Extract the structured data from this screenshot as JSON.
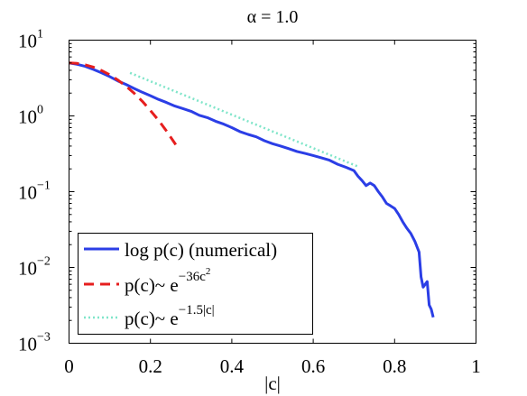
{
  "chart_data": {
    "type": "line",
    "title": "α = 1.0",
    "xlabel": "|c|",
    "ylabel": "",
    "xlim": [
      0,
      1
    ],
    "ylim": [
      0.001,
      10
    ],
    "yscale": "log",
    "grid": false,
    "legend_position": "bottom-left",
    "x_ticks": [
      {
        "value": 0,
        "label": "0"
      },
      {
        "value": 0.2,
        "label": "0.2"
      },
      {
        "value": 0.4,
        "label": "0.4"
      },
      {
        "value": 0.6,
        "label": "0.6"
      },
      {
        "value": 0.8,
        "label": "0.8"
      },
      {
        "value": 1,
        "label": "1"
      }
    ],
    "y_ticks": [
      {
        "value": 10,
        "base": "10",
        "exp": "1"
      },
      {
        "value": 1,
        "base": "10",
        "exp": "0"
      },
      {
        "value": 0.1,
        "base": "10",
        "exp": "−1"
      },
      {
        "value": 0.01,
        "base": "10",
        "exp": "−2"
      },
      {
        "value": 0.001,
        "base": "10",
        "exp": "−3"
      }
    ],
    "series": [
      {
        "name": "log p(c) (numerical)",
        "color": "#2b3ee6",
        "style": "solid",
        "x": [
          0.0,
          0.02,
          0.04,
          0.06,
          0.08,
          0.1,
          0.12,
          0.14,
          0.16,
          0.18,
          0.2,
          0.22,
          0.24,
          0.26,
          0.28,
          0.3,
          0.32,
          0.34,
          0.36,
          0.38,
          0.4,
          0.42,
          0.44,
          0.46,
          0.48,
          0.5,
          0.52,
          0.54,
          0.56,
          0.58,
          0.6,
          0.62,
          0.64,
          0.66,
          0.68,
          0.7,
          0.71,
          0.72,
          0.73,
          0.74,
          0.75,
          0.76,
          0.77,
          0.78,
          0.79,
          0.8,
          0.81,
          0.82,
          0.83,
          0.84,
          0.85,
          0.86,
          0.865,
          0.87,
          0.88,
          0.885,
          0.89,
          0.895
        ],
        "y": [
          5.0,
          4.8,
          4.5,
          4.1,
          3.7,
          3.3,
          2.9,
          2.6,
          2.3,
          2.05,
          1.85,
          1.65,
          1.5,
          1.35,
          1.25,
          1.15,
          1.02,
          0.95,
          0.85,
          0.78,
          0.7,
          0.62,
          0.57,
          0.53,
          0.47,
          0.43,
          0.4,
          0.37,
          0.34,
          0.32,
          0.3,
          0.28,
          0.26,
          0.23,
          0.21,
          0.19,
          0.16,
          0.14,
          0.12,
          0.13,
          0.12,
          0.1,
          0.085,
          0.07,
          0.065,
          0.06,
          0.05,
          0.04,
          0.033,
          0.028,
          0.022,
          0.016,
          0.0075,
          0.0055,
          0.0065,
          0.0032,
          0.0028,
          0.0022
        ]
      },
      {
        "name": "p(c)~ e^{-36c^2}",
        "label_base": "p(c)~ e",
        "label_exp": "−36c",
        "label_exp2": "2",
        "color": "#e61e1e",
        "style": "dashed",
        "x": [
          0.0,
          0.02,
          0.04,
          0.06,
          0.08,
          0.1,
          0.12,
          0.14,
          0.16,
          0.18,
          0.2,
          0.22,
          0.24,
          0.265
        ],
        "y": [
          5.0,
          4.93,
          4.72,
          4.39,
          3.97,
          3.49,
          2.98,
          2.47,
          1.99,
          1.56,
          1.18,
          0.874,
          0.627,
          0.397
        ]
      },
      {
        "name": "p(c)~ e^{-1.5|c|}",
        "label_base": "p(c)~ e",
        "label_exp": "−1.5|c|",
        "color": "#7fe5c9",
        "style": "dotted",
        "x": [
          0.15,
          0.71
        ],
        "y": [
          3.7,
          0.215
        ]
      }
    ]
  }
}
